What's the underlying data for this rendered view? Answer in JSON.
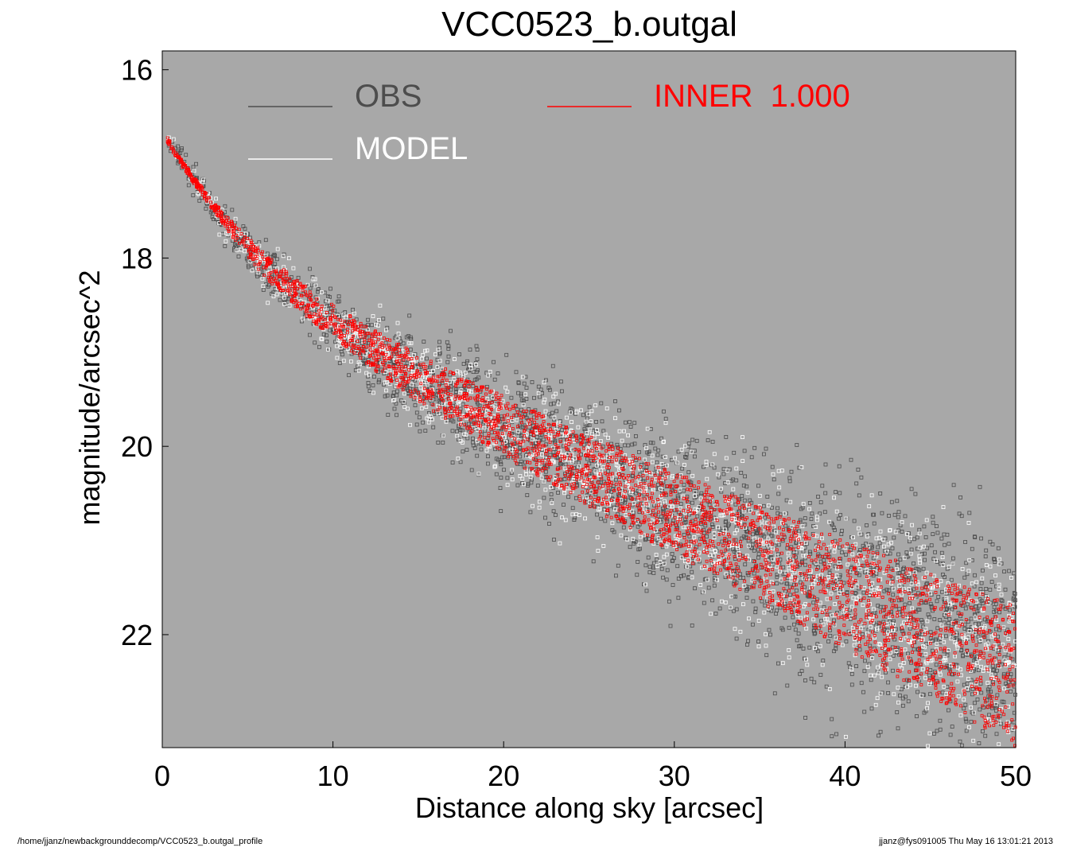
{
  "chart_data": {
    "type": "scatter",
    "title": "VCC0523_b.outgal",
    "xlabel": "Distance along sky [arcsec]",
    "ylabel": "magnitude/arcsec^2",
    "xlim": [
      0,
      50
    ],
    "ylim": [
      23.2,
      15.8
    ],
    "y_inverted": true,
    "xticks": [
      0,
      10,
      20,
      30,
      40,
      50
    ],
    "yticks": [
      16,
      18,
      20,
      22
    ],
    "background_color": "#a8a8a8",
    "grid": false,
    "legend": [
      {
        "label": "OBS",
        "color": "#4d4d4d"
      },
      {
        "label": "INNER  1.000",
        "color": "#ff0000"
      },
      {
        "label": "MODEL",
        "color": "#ffffff"
      }
    ],
    "series": [
      {
        "name": "OBS",
        "color": "#4d4d4d",
        "x": [
          0.3,
          1,
          2,
          3,
          4,
          5,
          6,
          8,
          10,
          12,
          15,
          18,
          20,
          25,
          30,
          35,
          40,
          45,
          50
        ],
        "y": [
          16.75,
          16.95,
          17.2,
          17.45,
          17.7,
          17.9,
          18.1,
          18.4,
          18.7,
          18.95,
          19.3,
          19.6,
          19.8,
          20.25,
          20.7,
          21.15,
          21.55,
          21.9,
          22.3
        ]
      },
      {
        "name": "MODEL",
        "color": "#ffffff",
        "x": [
          0.3,
          1,
          2,
          3,
          4,
          5,
          6,
          8,
          10,
          12,
          15,
          18,
          20,
          25,
          30,
          35,
          40,
          45,
          50
        ],
        "y": [
          16.75,
          16.95,
          17.2,
          17.45,
          17.7,
          17.9,
          18.1,
          18.4,
          18.7,
          18.95,
          19.3,
          19.6,
          19.8,
          20.25,
          20.7,
          21.15,
          21.55,
          21.9,
          22.3
        ]
      },
      {
        "name": "INNER  1.000",
        "color": "#ff0000",
        "x": [
          0.3,
          1,
          2,
          3,
          4,
          5,
          6,
          8,
          10,
          12,
          15,
          18,
          20,
          25,
          30,
          35,
          40,
          45,
          50
        ],
        "y_upper": [
          16.72,
          16.92,
          17.17,
          17.4,
          17.6,
          17.78,
          17.95,
          18.25,
          18.5,
          18.72,
          19.03,
          19.3,
          19.47,
          19.88,
          20.27,
          20.64,
          21.0,
          21.35,
          21.7
        ],
        "y_lower": [
          16.78,
          16.98,
          17.25,
          17.5,
          17.75,
          17.98,
          18.2,
          18.55,
          18.85,
          19.13,
          19.53,
          19.87,
          20.1,
          20.64,
          21.15,
          21.65,
          22.15,
          22.65,
          23.2
        ]
      }
    ]
  },
  "footer": {
    "left": "/home/jjanz/newbackgrounddecomp/VCC0523_b.outgal_profile",
    "right": "jjanz@fys091005  Thu May 16 13:01:21 2013"
  }
}
